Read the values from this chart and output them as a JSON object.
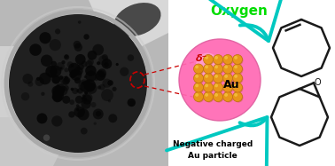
{
  "bg_color": "#ffffff",
  "oxygen_text": "Oxygen",
  "oxygen_color": "#00dd00",
  "oxygen_fontsize": 11,
  "oxygen_fontweight": "bold",
  "au_text": "Au",
  "au_fontsize": 9,
  "delta_text": "δ⁻",
  "delta_color": "#cc0000",
  "delta_fontsize": 8,
  "neg_charged_text": "Negative charged\nAu particle",
  "neg_charged_fontsize": 6.5,
  "neg_charged_fontweight": "bold",
  "sphere_color": "#ff69b4",
  "au_ball_color": "#e8961a",
  "au_ball_highlight": "#f5c842",
  "au_ball_shadow": "#aa6000",
  "arrow_color": "#00c8c0",
  "ring_lw": 1.8
}
